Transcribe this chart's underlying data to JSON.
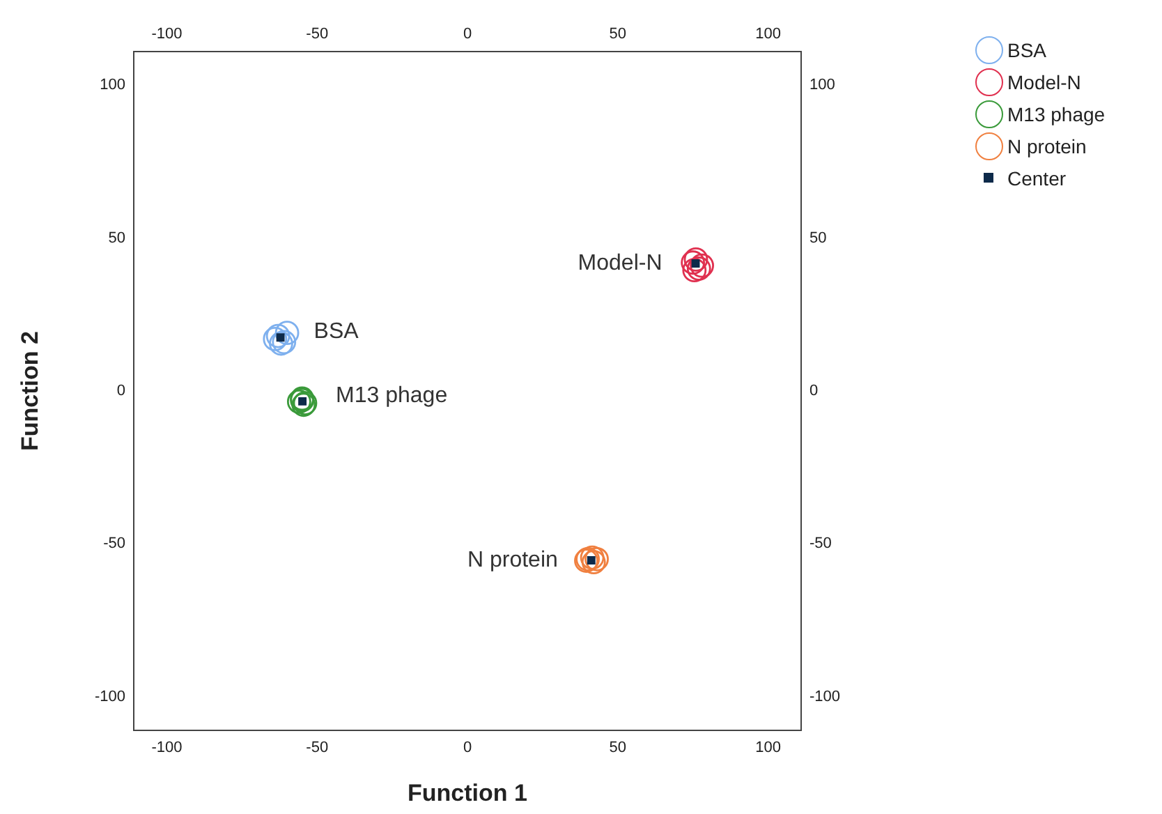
{
  "chart_data": {
    "type": "scatter",
    "xlabel": "Function 1",
    "ylabel": "Function 2",
    "xlim": [
      -111,
      111
    ],
    "ylim": [
      -111,
      111
    ],
    "x2lim": [
      -111,
      111
    ],
    "y2lim": [
      -111,
      111
    ],
    "xticks": [
      -100,
      -50,
      0,
      50,
      100
    ],
    "yticks": [
      -100,
      -50,
      0,
      50,
      100
    ],
    "x2ticks": [
      -100,
      -50,
      0,
      50,
      100
    ],
    "y2ticks": [
      -100,
      -50,
      0,
      50,
      100
    ],
    "grid": false,
    "legend": "top right",
    "marker": "circle",
    "series": [
      {
        "name": "BSA",
        "color": "#7eb0ee",
        "x": [
          -63,
          -61,
          -64,
          -60,
          -62
        ],
        "values": [
          18,
          16,
          17,
          19,
          15.5
        ]
      },
      {
        "name": "Model-N",
        "color": "#e0304f",
        "x": [
          76,
          77,
          75,
          78,
          75.5
        ],
        "values": [
          43,
          40,
          42,
          41,
          39.5
        ]
      },
      {
        "name": "M13 phage",
        "color": "#3a9a3a",
        "x": [
          -55,
          -54,
          -56,
          -55,
          -54.5
        ],
        "values": [
          -3,
          -4,
          -3.5,
          -2.5,
          -4.5
        ]
      },
      {
        "name": "N protein",
        "color": "#f08040",
        "x": [
          40,
          42,
          43,
          39.5,
          41.5
        ],
        "values": [
          -55,
          -56,
          -55,
          -55.5,
          -54.5
        ]
      },
      {
        "name": "Center",
        "color": "#0d2a4a",
        "marker": "square",
        "x": [
          -62.2,
          75.9,
          -54.9,
          41.2
        ],
        "values": [
          17.5,
          41.7,
          -3.4,
          -55.4
        ]
      }
    ],
    "annotations": [
      {
        "text": "BSA",
        "x": -62.2,
        "y": 17.5
      },
      {
        "text": "Model-N",
        "x": 75.9,
        "y": 41.7
      },
      {
        "text": "M13 phage",
        "x": -54.9,
        "y": -3.4
      },
      {
        "text": "N protein",
        "x": 41.2,
        "y": -55.4
      }
    ]
  }
}
